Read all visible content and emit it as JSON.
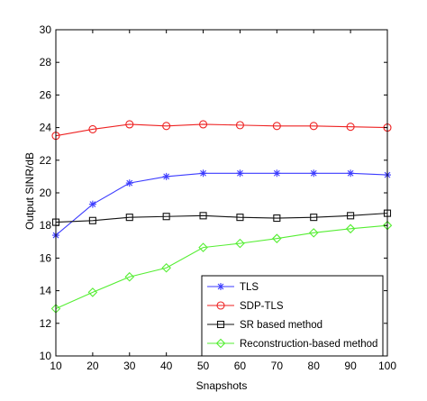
{
  "chart_data": {
    "type": "line",
    "title": "",
    "xlabel": "Snapshots",
    "ylabel": "Output SINR/dB",
    "xlim": [
      10,
      100
    ],
    "ylim": [
      10,
      30
    ],
    "x": [
      10,
      20,
      30,
      40,
      50,
      60,
      70,
      80,
      90,
      100
    ],
    "xticks": [
      10,
      20,
      30,
      40,
      50,
      60,
      70,
      80,
      90,
      100
    ],
    "yticks": [
      10,
      12,
      14,
      16,
      18,
      20,
      22,
      24,
      26,
      28,
      30
    ],
    "grid": false,
    "legend_position": "bottom-right",
    "series": [
      {
        "name": "TLS",
        "color": "#3b3bff",
        "marker": "star",
        "values": [
          17.4,
          19.3,
          20.6,
          21.0,
          21.2,
          21.2,
          21.2,
          21.2,
          21.2,
          21.1
        ]
      },
      {
        "name": "SDP-TLS",
        "color": "#ee2222",
        "marker": "circle",
        "values": [
          23.5,
          23.9,
          24.2,
          24.1,
          24.2,
          24.15,
          24.1,
          24.1,
          24.05,
          24.0
        ]
      },
      {
        "name": "SR based method",
        "color": "#111111",
        "marker": "square",
        "values": [
          18.2,
          18.3,
          18.5,
          18.55,
          18.6,
          18.5,
          18.45,
          18.5,
          18.6,
          18.75
        ]
      },
      {
        "name": "Reconstruction-based method",
        "color": "#55ee33",
        "marker": "diamond",
        "values": [
          12.9,
          13.9,
          14.85,
          15.4,
          16.65,
          16.9,
          17.2,
          17.55,
          17.8,
          18.0
        ]
      }
    ]
  }
}
